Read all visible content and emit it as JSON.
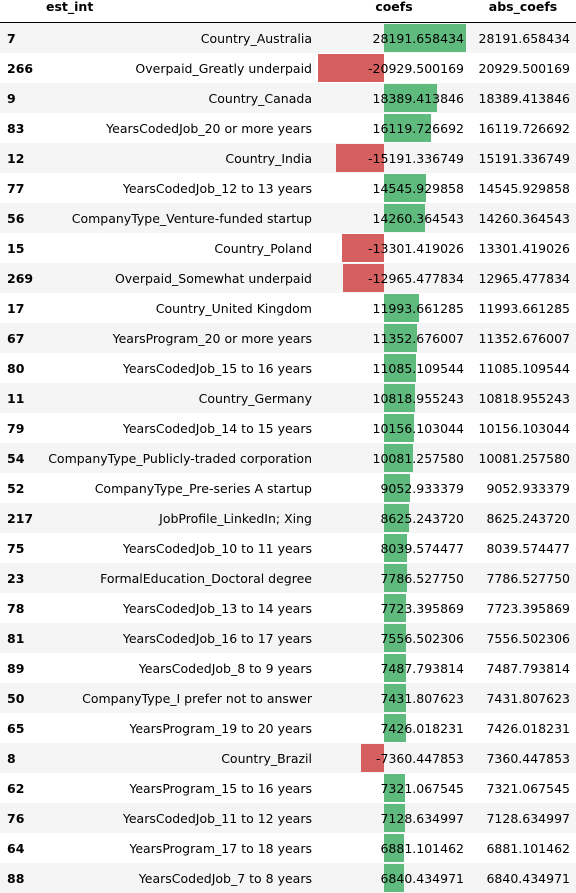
{
  "header": {
    "index_col": "est_int",
    "label_col": "",
    "coef_col": "coefs",
    "abs_col": "abs_coefs"
  },
  "colors": {
    "positive_bar": "#5fba7d",
    "negative_bar": "#d65f5f"
  },
  "rows": [
    {
      "idx": "7",
      "label": "Country_Australia",
      "coef": "28191.658434",
      "coef_value": 28191.658434,
      "abs": "28191.658434"
    },
    {
      "idx": "266",
      "label": "Overpaid_Greatly underpaid",
      "coef": "-20929.500169",
      "coef_value": -20929.500169,
      "abs": "20929.500169"
    },
    {
      "idx": "9",
      "label": "Country_Canada",
      "coef": "18389.413846",
      "coef_value": 18389.413846,
      "abs": "18389.413846"
    },
    {
      "idx": "83",
      "label": "YearsCodedJob_20 or more years",
      "coef": "16119.726692",
      "coef_value": 16119.726692,
      "abs": "16119.726692"
    },
    {
      "idx": "12",
      "label": "Country_India",
      "coef": "-15191.336749",
      "coef_value": -15191.336749,
      "abs": "15191.336749"
    },
    {
      "idx": "77",
      "label": "YearsCodedJob_12 to 13 years",
      "coef": "14545.929858",
      "coef_value": 14545.929858,
      "abs": "14545.929858"
    },
    {
      "idx": "56",
      "label": "CompanyType_Venture-funded startup",
      "coef": "14260.364543",
      "coef_value": 14260.364543,
      "abs": "14260.364543"
    },
    {
      "idx": "15",
      "label": "Country_Poland",
      "coef": "-13301.419026",
      "coef_value": -13301.419026,
      "abs": "13301.419026"
    },
    {
      "idx": "269",
      "label": "Overpaid_Somewhat underpaid",
      "coef": "-12965.477834",
      "coef_value": -12965.477834,
      "abs": "12965.477834"
    },
    {
      "idx": "17",
      "label": "Country_United Kingdom",
      "coef": "11993.661285",
      "coef_value": 11993.661285,
      "abs": "11993.661285"
    },
    {
      "idx": "67",
      "label": "YearsProgram_20 or more years",
      "coef": "11352.676007",
      "coef_value": 11352.676007,
      "abs": "11352.676007"
    },
    {
      "idx": "80",
      "label": "YearsCodedJob_15 to 16 years",
      "coef": "11085.109544",
      "coef_value": 11085.109544,
      "abs": "11085.109544"
    },
    {
      "idx": "11",
      "label": "Country_Germany",
      "coef": "10818.955243",
      "coef_value": 10818.955243,
      "abs": "10818.955243"
    },
    {
      "idx": "79",
      "label": "YearsCodedJob_14 to 15 years",
      "coef": "10156.103044",
      "coef_value": 10156.103044,
      "abs": "10156.103044"
    },
    {
      "idx": "54",
      "label": "CompanyType_Publicly-traded corporation",
      "coef": "10081.257580",
      "coef_value": 10081.25758,
      "abs": "10081.257580"
    },
    {
      "idx": "52",
      "label": "CompanyType_Pre-series A startup",
      "coef": "9052.933379",
      "coef_value": 9052.933379,
      "abs": "9052.933379"
    },
    {
      "idx": "217",
      "label": "JobProfile_LinkedIn; Xing",
      "coef": "8625.243720",
      "coef_value": 8625.24372,
      "abs": "8625.243720"
    },
    {
      "idx": "75",
      "label": "YearsCodedJob_10 to 11 years",
      "coef": "8039.574477",
      "coef_value": 8039.574477,
      "abs": "8039.574477"
    },
    {
      "idx": "23",
      "label": "FormalEducation_Doctoral degree",
      "coef": "7786.527750",
      "coef_value": 7786.52775,
      "abs": "7786.527750"
    },
    {
      "idx": "78",
      "label": "YearsCodedJob_13 to 14 years",
      "coef": "7723.395869",
      "coef_value": 7723.395869,
      "abs": "7723.395869"
    },
    {
      "idx": "81",
      "label": "YearsCodedJob_16 to 17 years",
      "coef": "7556.502306",
      "coef_value": 7556.502306,
      "abs": "7556.502306"
    },
    {
      "idx": "89",
      "label": "YearsCodedJob_8 to 9 years",
      "coef": "7487.793814",
      "coef_value": 7487.793814,
      "abs": "7487.793814"
    },
    {
      "idx": "50",
      "label": "CompanyType_I prefer not to answer",
      "coef": "7431.807623",
      "coef_value": 7431.807623,
      "abs": "7431.807623"
    },
    {
      "idx": "65",
      "label": "YearsProgram_19 to 20 years",
      "coef": "7426.018231",
      "coef_value": 7426.018231,
      "abs": "7426.018231"
    },
    {
      "idx": "8",
      "label": "Country_Brazil",
      "coef": "-7360.447853",
      "coef_value": -7360.447853,
      "abs": "7360.447853"
    },
    {
      "idx": "62",
      "label": "YearsProgram_15 to 16 years",
      "coef": "7321.067545",
      "coef_value": 7321.067545,
      "abs": "7321.067545"
    },
    {
      "idx": "76",
      "label": "YearsCodedJob_11 to 12 years",
      "coef": "7128.634997",
      "coef_value": 7128.634997,
      "abs": "7128.634997"
    },
    {
      "idx": "64",
      "label": "YearsProgram_17 to 18 years",
      "coef": "6881.101462",
      "coef_value": 6881.101462,
      "abs": "6881.101462"
    },
    {
      "idx": "88",
      "label": "YearsCodedJob_7 to 8 years",
      "coef": "6840.434971",
      "coef_value": 6840.434971,
      "abs": "6840.434971"
    }
  ]
}
